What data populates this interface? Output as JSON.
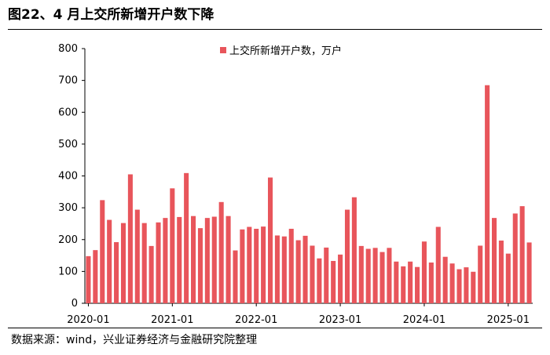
{
  "header": {
    "title": "图22、4 月上交所新增开户数下降"
  },
  "footer": {
    "source": "数据来源：wind，兴业证券经济与金融研究院整理"
  },
  "colors": {
    "bar": "#e8555b",
    "axis": "#000000"
  },
  "chart_data": {
    "type": "bar",
    "title": "",
    "xlabel": "",
    "ylabel": "",
    "ylim": [
      0,
      800
    ],
    "yticks": [
      0,
      100,
      200,
      300,
      400,
      500,
      600,
      700,
      800
    ],
    "xtick_labels": [
      "2020-01",
      "2021-01",
      "2022-01",
      "2023-01",
      "2024-01",
      "2025-01"
    ],
    "legend": {
      "position": "top-center"
    },
    "grid": false,
    "categories": [
      "2020-01",
      "2020-02",
      "2020-03",
      "2020-04",
      "2020-05",
      "2020-06",
      "2020-07",
      "2020-08",
      "2020-09",
      "2020-10",
      "2020-11",
      "2020-12",
      "2021-01",
      "2021-02",
      "2021-03",
      "2021-04",
      "2021-05",
      "2021-06",
      "2021-07",
      "2021-08",
      "2021-09",
      "2021-10",
      "2021-11",
      "2021-12",
      "2022-01",
      "2022-02",
      "2022-03",
      "2022-04",
      "2022-05",
      "2022-06",
      "2022-07",
      "2022-08",
      "2022-09",
      "2022-10",
      "2022-11",
      "2022-12",
      "2023-01",
      "2023-02",
      "2023-03",
      "2023-04",
      "2023-05",
      "2023-06",
      "2023-07",
      "2023-08",
      "2023-09",
      "2023-10",
      "2023-11",
      "2023-12",
      "2024-01",
      "2024-02",
      "2024-03",
      "2024-04",
      "2024-05",
      "2024-06",
      "2024-07",
      "2024-08",
      "2024-09",
      "2024-10",
      "2024-11",
      "2024-12",
      "2025-01",
      "2025-02",
      "2025-03",
      "2025-04"
    ],
    "series": [
      {
        "name": "上交所新增开户数，万户",
        "values": [
          148,
          167,
          324,
          262,
          192,
          252,
          405,
          294,
          252,
          180,
          254,
          268,
          361,
          271,
          409,
          274,
          236,
          268,
          272,
          318,
          274,
          166,
          232,
          240,
          234,
          241,
          395,
          213,
          210,
          234,
          198,
          212,
          181,
          141,
          175,
          133,
          153,
          294,
          333,
          180,
          171,
          174,
          161,
          174,
          131,
          116,
          131,
          114,
          194,
          128,
          240,
          146,
          125,
          107,
          113,
          99,
          181,
          685,
          268,
          197,
          156,
          282,
          305,
          191
        ]
      }
    ]
  }
}
